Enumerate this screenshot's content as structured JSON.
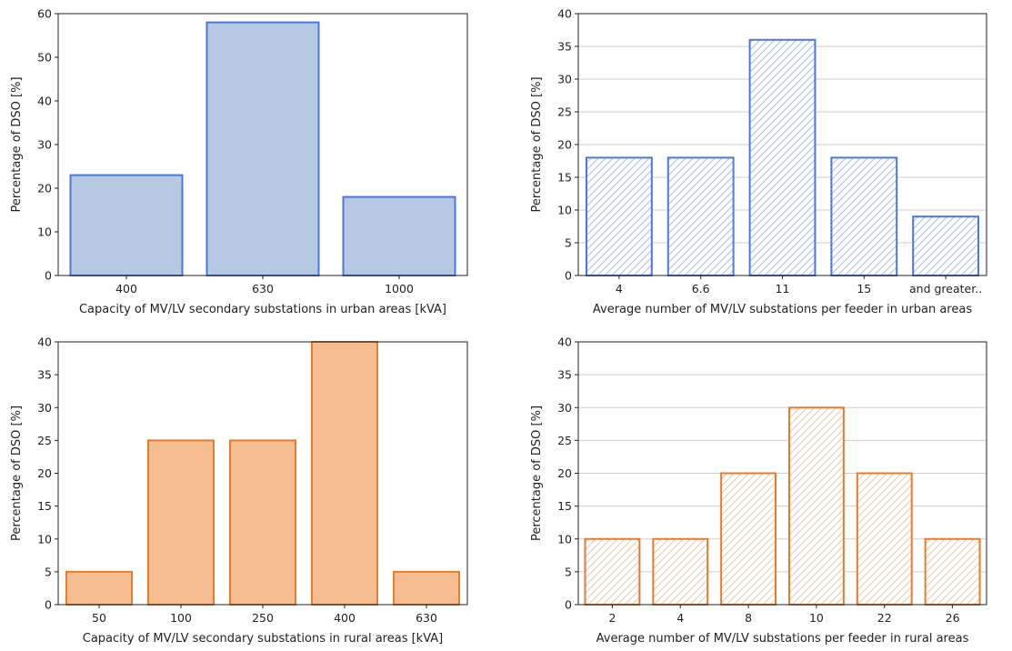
{
  "chart_data": [
    {
      "type": "bar",
      "categories": [
        "400",
        "630",
        "1000"
      ],
      "values": [
        23,
        58,
        18
      ],
      "title": "",
      "xlabel": "Capacity of MV/LV secondary substations in urban areas [kVA]",
      "ylabel": "Percentage of DSO [%]",
      "ylim": [
        0,
        60
      ],
      "yticks": [
        "0",
        "10",
        "20",
        "30",
        "40",
        "50",
        "60"
      ],
      "grid": false,
      "fill": "#b7c9e2",
      "edge": "#4c78dd",
      "hatched": false
    },
    {
      "type": "bar",
      "categories": [
        "4",
        "6.6",
        "11",
        "15",
        "and greater.."
      ],
      "values": [
        18,
        18,
        36,
        18,
        9
      ],
      "title": "",
      "xlabel": "Average number of MV/LV substations per feeder in urban areas",
      "ylabel": "Percentage of DSO [%]",
      "ylim": [
        0,
        40
      ],
      "yticks": [
        "0",
        "5",
        "10",
        "15",
        "20",
        "25",
        "30",
        "35",
        "40"
      ],
      "grid": true,
      "fill": "#ffffff",
      "edge": "#4c78dd",
      "hatch": "#a9bde6",
      "hatched": true
    },
    {
      "type": "bar",
      "categories": [
        "50",
        "100",
        "250",
        "400",
        "630"
      ],
      "values": [
        5,
        25,
        25,
        40,
        5
      ],
      "title": "",
      "xlabel": "Capacity of MV/LV secondary substations in rural areas [kVA]",
      "ylabel": "Percentage of DSO [%]",
      "ylim": [
        0,
        40
      ],
      "yticks": [
        "0",
        "5",
        "10",
        "15",
        "20",
        "25",
        "30",
        "35",
        "40"
      ],
      "grid": false,
      "fill": "#f6bd91",
      "edge": "#e87b2c",
      "hatched": false
    },
    {
      "type": "bar",
      "categories": [
        "2",
        "4",
        "8",
        "10",
        "22",
        "26"
      ],
      "values": [
        10,
        10,
        20,
        30,
        20,
        10
      ],
      "title": "",
      "xlabel": "Average number of MV/LV substations per feeder in rural areas",
      "ylabel": "Percentage of DSO [%]",
      "ylim": [
        0,
        40
      ],
      "yticks": [
        "0",
        "5",
        "10",
        "15",
        "20",
        "25",
        "30",
        "35",
        "40"
      ],
      "grid": true,
      "fill": "#ffffff",
      "edge": "#e87b2c",
      "hatch": "#f5c9a6",
      "hatched": true
    }
  ]
}
